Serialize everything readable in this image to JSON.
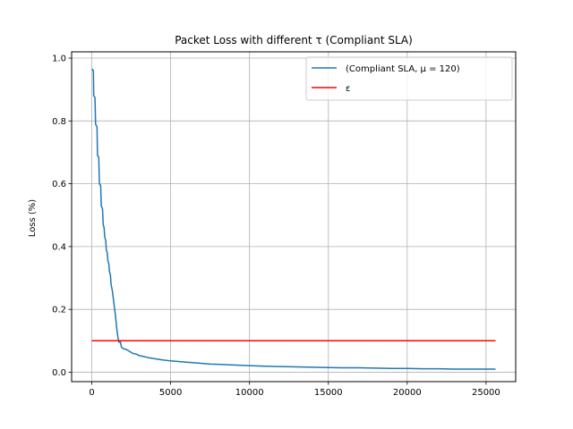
{
  "chart_data": {
    "type": "line",
    "title": "Packet Loss with different τ (Compliant SLA)",
    "xlabel": "",
    "ylabel": "Loss (%)",
    "xlim": [
      -1280,
      26880
    ],
    "ylim": [
      -0.03,
      1.02
    ],
    "xticks": [
      0,
      5000,
      10000,
      15000,
      20000,
      25000
    ],
    "yticks": [
      0.0,
      0.2,
      0.4,
      0.6,
      0.8,
      1.0
    ],
    "xtick_labels": [
      "0",
      "5000",
      "10000",
      "15000",
      "20000",
      "25000"
    ],
    "ytick_labels": [
      "0.0",
      "0.2",
      "0.4",
      "0.6",
      "0.8",
      "1.0"
    ],
    "grid": true,
    "legend_position": "top-right",
    "series": [
      {
        "name": "(Compliant SLA, μ = 120)",
        "color": "#1f77b4",
        "points": [
          [
            0,
            0.965
          ],
          [
            100,
            0.96
          ],
          [
            120,
            0.88
          ],
          [
            200,
            0.875
          ],
          [
            240,
            0.79
          ],
          [
            330,
            0.78
          ],
          [
            360,
            0.69
          ],
          [
            440,
            0.685
          ],
          [
            480,
            0.6
          ],
          [
            560,
            0.595
          ],
          [
            600,
            0.53
          ],
          [
            680,
            0.52
          ],
          [
            720,
            0.47
          ],
          [
            780,
            0.46
          ],
          [
            820,
            0.43
          ],
          [
            880,
            0.42
          ],
          [
            920,
            0.39
          ],
          [
            980,
            0.38
          ],
          [
            1020,
            0.355
          ],
          [
            1080,
            0.345
          ],
          [
            1120,
            0.32
          ],
          [
            1180,
            0.31
          ],
          [
            1220,
            0.28
          ],
          [
            1300,
            0.26
          ],
          [
            1400,
            0.22
          ],
          [
            1500,
            0.18
          ],
          [
            1580,
            0.14
          ],
          [
            1660,
            0.11
          ],
          [
            1720,
            0.095
          ],
          [
            1800,
            0.1
          ],
          [
            1880,
            0.08
          ],
          [
            2000,
            0.075
          ],
          [
            2200,
            0.072
          ],
          [
            2400,
            0.066
          ],
          [
            2600,
            0.06
          ],
          [
            2800,
            0.058
          ],
          [
            3000,
            0.053
          ],
          [
            3300,
            0.05
          ],
          [
            3600,
            0.046
          ],
          [
            4000,
            0.043
          ],
          [
            4500,
            0.039
          ],
          [
            5000,
            0.036
          ],
          [
            5500,
            0.034
          ],
          [
            6000,
            0.032
          ],
          [
            6500,
            0.03
          ],
          [
            7000,
            0.028
          ],
          [
            7500,
            0.026
          ],
          [
            8000,
            0.025
          ],
          [
            9000,
            0.023
          ],
          [
            10000,
            0.021
          ],
          [
            11000,
            0.019
          ],
          [
            12000,
            0.018
          ],
          [
            13000,
            0.017
          ],
          [
            14000,
            0.016
          ],
          [
            15000,
            0.015
          ],
          [
            16000,
            0.014
          ],
          [
            17000,
            0.014
          ],
          [
            18000,
            0.013
          ],
          [
            19000,
            0.012
          ],
          [
            20000,
            0.012
          ],
          [
            21000,
            0.011
          ],
          [
            22000,
            0.011
          ],
          [
            23000,
            0.01
          ],
          [
            24000,
            0.01
          ],
          [
            25000,
            0.01
          ],
          [
            25600,
            0.01
          ]
        ]
      },
      {
        "name": "ε",
        "color": "#ff0000",
        "points": [
          [
            0,
            0.1
          ],
          [
            25600,
            0.1
          ]
        ]
      }
    ]
  }
}
